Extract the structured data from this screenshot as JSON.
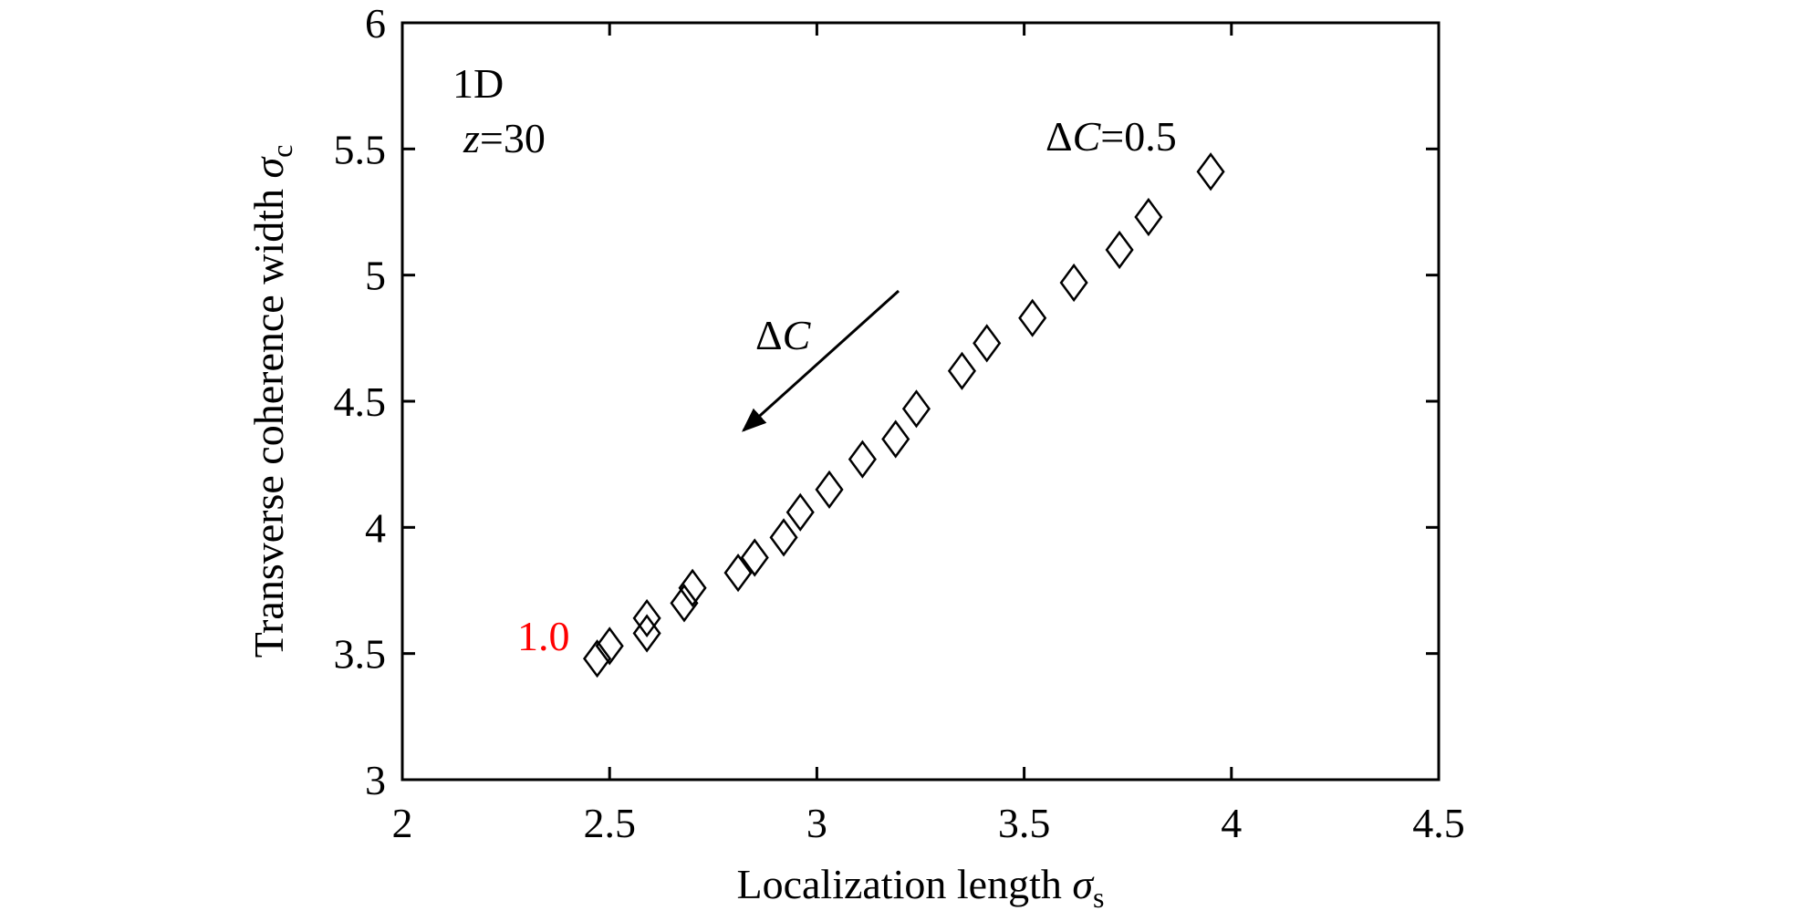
{
  "chart_data": {
    "type": "scatter",
    "xlabel": {
      "text": "Localization length",
      "symbol": "σ",
      "subscript": "s"
    },
    "ylabel": {
      "text": "Transverse coherence width",
      "symbol": "σ",
      "subscript": "c"
    },
    "x": [
      2.47,
      2.5,
      2.59,
      2.59,
      2.68,
      2.7,
      2.81,
      2.85,
      2.92,
      2.96,
      3.03,
      3.11,
      3.19,
      3.24,
      3.35,
      3.41,
      3.52,
      3.62,
      3.73,
      3.8,
      3.95
    ],
    "values": [
      3.48,
      3.53,
      3.58,
      3.64,
      3.7,
      3.76,
      3.82,
      3.88,
      3.96,
      4.06,
      4.15,
      4.27,
      4.35,
      4.47,
      4.62,
      4.73,
      4.83,
      4.97,
      5.1,
      5.23,
      5.41
    ],
    "marker": "diamond",
    "color": "#000000",
    "xlim": [
      2,
      4.5
    ],
    "xticks": [
      2,
      2.5,
      3,
      3.5,
      4,
      4.5
    ],
    "ylim": [
      3,
      6
    ],
    "yticks": [
      3,
      3.5,
      4,
      4.5,
      5,
      5.5,
      6
    ],
    "annotations": {
      "dimension": "1D",
      "distance": {
        "var": "z",
        "rest": "=30"
      },
      "start": {
        "delta": "Δ",
        "var": "C",
        "rest": "=0.5"
      },
      "end": {
        "text": "1.0",
        "color": "#ff0000"
      },
      "arrow": {
        "delta": "Δ",
        "var": "C"
      }
    }
  }
}
